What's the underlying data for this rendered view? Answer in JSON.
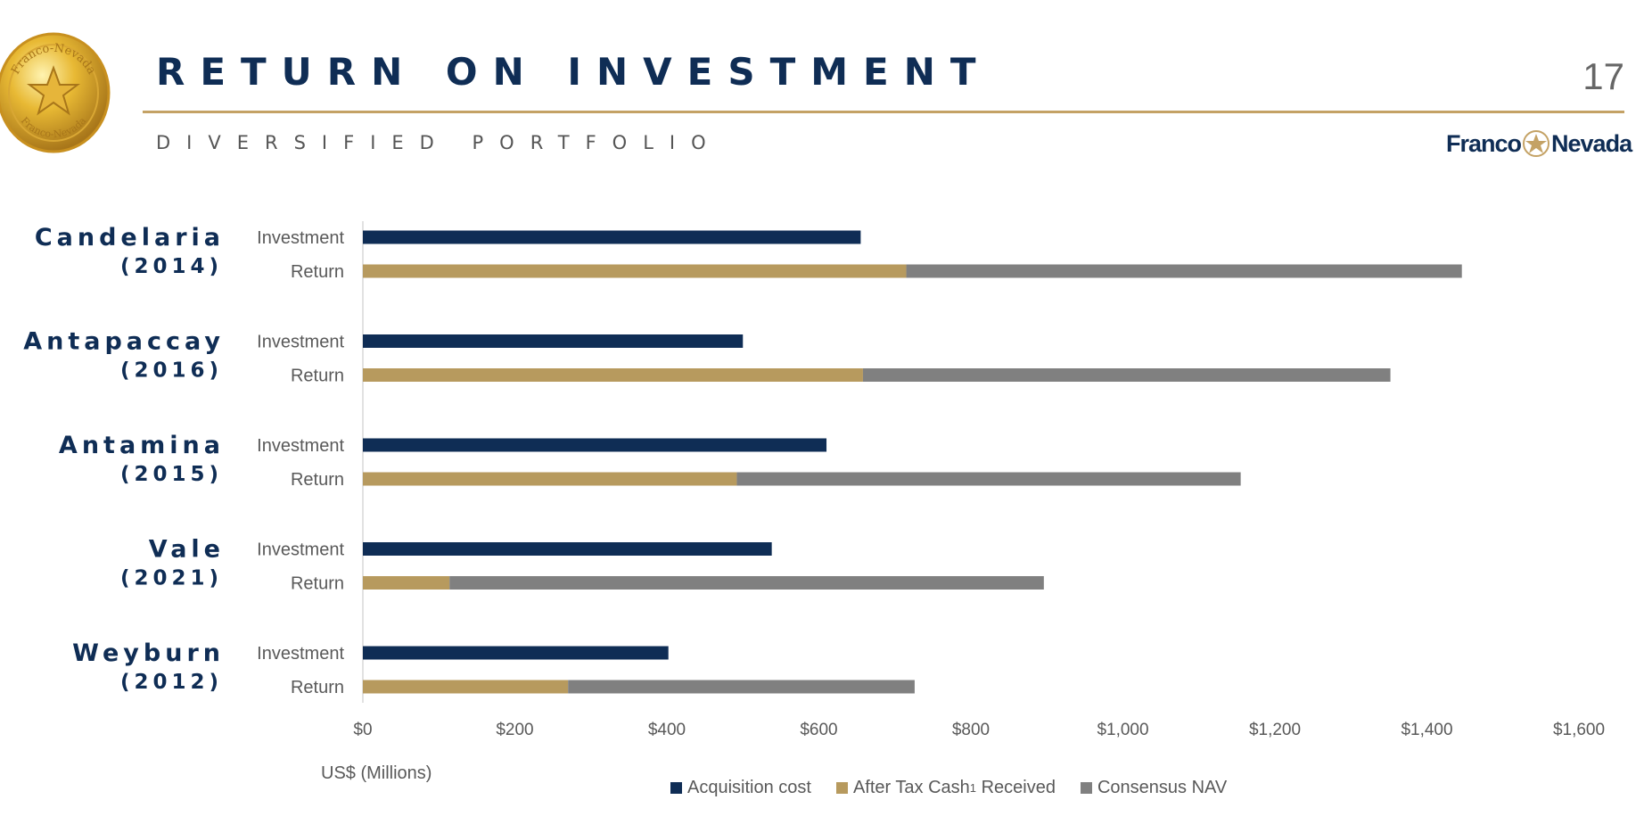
{
  "header": {
    "title": "RETURN ON INVESTMENT",
    "subtitle": "DIVERSIFIED PORTFOLIO",
    "page_number": "17",
    "logo_left": "Franco",
    "logo_right": "Nevada",
    "coin_text_top": "Franco-Nevada",
    "coin_text_bottom": "Franco-Nevada"
  },
  "colors": {
    "acquisition": "#0f2d55",
    "cash": "#b79a5e",
    "nav": "#808080",
    "accent_rule": "#c4a265"
  },
  "chart_data": {
    "type": "bar",
    "orientation": "horizontal",
    "stacked": true,
    "xlabel": "US$ (Millions)",
    "xlim": [
      0,
      1600
    ],
    "xticks": [
      0,
      200,
      400,
      600,
      800,
      1000,
      1200,
      1400,
      1600
    ],
    "xtick_labels": [
      "$0",
      "$200",
      "$400",
      "$600",
      "$800",
      "$1,000",
      "$1,200",
      "$1,400",
      "$1,600"
    ],
    "row_labels": {
      "investment": "Investment",
      "return": "Return"
    },
    "legend": {
      "position": "bottom",
      "items": [
        {
          "key": "acquisition",
          "label": "Acquisition cost"
        },
        {
          "key": "cash",
          "label": "After Tax Cash",
          "sup": "1",
          "suffix": " Received"
        },
        {
          "key": "nav",
          "label": "Consensus NAV"
        }
      ]
    },
    "projects": [
      {
        "name": "Candelaria",
        "year": "(2014)",
        "acquisition_cost": 655,
        "after_tax_cash": 715,
        "consensus_nav": 731
      },
      {
        "name": "Antapaccay",
        "year": "(2016)",
        "acquisition_cost": 500,
        "after_tax_cash": 658,
        "consensus_nav": 694
      },
      {
        "name": "Antamina",
        "year": "(2015)",
        "acquisition_cost": 610,
        "after_tax_cash": 492,
        "consensus_nav": 663
      },
      {
        "name": "Vale",
        "year": "(2021)",
        "acquisition_cost": 538,
        "after_tax_cash": 114,
        "consensus_nav": 782
      },
      {
        "name": "Weyburn",
        "year": "(2012)",
        "acquisition_cost": 402,
        "after_tax_cash": 270,
        "consensus_nav": 456
      }
    ]
  }
}
